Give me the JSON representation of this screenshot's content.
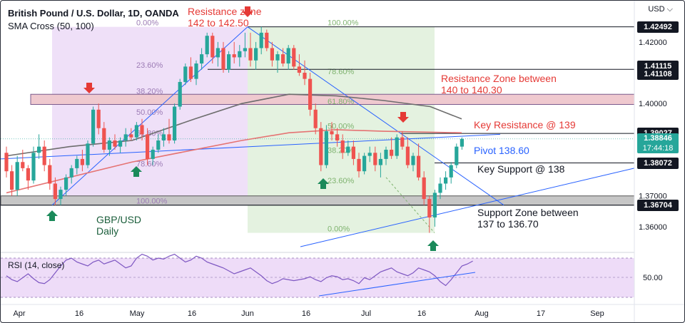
{
  "header": {
    "title": "British Pound / U.S. Dollar, 1D, OANDA",
    "indicator": "SMA Cross (50, 100)",
    "currency": "USD"
  },
  "rsi": {
    "label": "RSI (14, close)",
    "level_label": "50.00",
    "values": [
      52,
      48,
      46,
      50,
      54,
      49,
      45,
      44,
      48,
      55,
      62,
      68,
      70,
      66,
      64,
      62,
      66,
      68,
      64,
      66,
      68,
      64,
      60,
      62,
      70,
      74,
      72,
      68,
      70,
      69,
      72,
      74,
      70,
      66,
      68,
      72,
      70,
      66,
      64,
      62,
      60,
      57,
      54,
      56,
      58,
      60,
      56,
      52,
      47,
      44,
      46,
      49,
      48,
      47,
      48,
      49,
      51,
      48,
      46,
      50,
      52,
      51,
      48,
      49,
      47,
      44,
      50,
      48,
      52,
      56,
      58,
      60,
      56,
      54,
      52,
      55,
      60,
      58,
      56,
      52,
      46,
      42,
      48,
      55,
      62,
      64,
      67
    ]
  },
  "chart_data": {
    "type": "candlestick",
    "symbol": "GBP/USD",
    "timeframe": "1D",
    "y_axis": {
      "ticks": [
        "1.42000",
        "1.41000",
        "1.40000",
        "1.39000",
        "1.38000",
        "1.37000",
        "1.36000"
      ],
      "range": [
        1.3535,
        1.432
      ]
    },
    "x_axis": {
      "ticks": [
        "Apr",
        "16",
        "May",
        "16",
        "Jun",
        "16",
        "Jul",
        "16",
        "Aug",
        "17",
        "Sep"
      ]
    },
    "price_tags": [
      {
        "value": "1.42492",
        "color": "#131722"
      },
      {
        "value": "1.41115",
        "color": "#131722"
      },
      {
        "value": "1.41108",
        "color": "#131722"
      },
      {
        "value": "1.39027",
        "color": "#131722"
      },
      {
        "value": "1.38846",
        "sub": "17:44:18",
        "color": "#26a69a"
      },
      {
        "value": "1.38072",
        "color": "#131722"
      },
      {
        "value": "1.36704",
        "color": "#131722"
      }
    ],
    "fib_labels": {
      "left": [
        "0.00%",
        "23.60%",
        "38.20%",
        "50.00%",
        "61.80%",
        "78.60%",
        "100.00%"
      ],
      "right": [
        "100.00%",
        "78.60%",
        "61.80%",
        "50.00%",
        "38.20%",
        "23.60%",
        "0.00%"
      ]
    },
    "annotations": {
      "resistance_zone_top": [
        "Resistance zone",
        "142 to 142.50"
      ],
      "resistance_zone_140": [
        "Resistance Zone between",
        "140 to 140.30"
      ],
      "key_resistance": "Key Resistance @ 139",
      "pivot": "Pivot 138.60",
      "key_support": "Key Support @ 138",
      "support_zone": [
        "Support Zone between",
        "137 to 136.70"
      ],
      "pair_label": [
        "GBP/USD",
        "Daily"
      ]
    },
    "candles": [
      [
        1.384,
        1.386,
        1.376,
        1.378
      ],
      [
        1.378,
        1.38,
        1.37,
        1.372
      ],
      [
        1.372,
        1.383,
        1.37,
        1.381
      ],
      [
        1.381,
        1.385,
        1.378,
        1.379
      ],
      [
        1.379,
        1.38,
        1.372,
        1.375
      ],
      [
        1.375,
        1.386,
        1.374,
        1.384
      ],
      [
        1.384,
        1.39,
        1.382,
        1.386
      ],
      [
        1.386,
        1.388,
        1.378,
        1.38
      ],
      [
        1.38,
        1.382,
        1.372,
        1.374
      ],
      [
        1.374,
        1.376,
        1.367,
        1.369
      ],
      [
        1.369,
        1.373,
        1.367,
        1.372
      ],
      [
        1.372,
        1.377,
        1.37,
        1.376
      ],
      [
        1.376,
        1.38,
        1.374,
        1.379
      ],
      [
        1.379,
        1.383,
        1.377,
        1.382
      ],
      [
        1.382,
        1.385,
        1.378,
        1.38
      ],
      [
        1.38,
        1.388,
        1.379,
        1.387
      ],
      [
        1.387,
        1.399,
        1.386,
        1.398
      ],
      [
        1.398,
        1.4,
        1.39,
        1.392
      ],
      [
        1.392,
        1.394,
        1.384,
        1.385
      ],
      [
        1.385,
        1.389,
        1.383,
        1.388
      ],
      [
        1.388,
        1.39,
        1.385,
        1.386
      ],
      [
        1.386,
        1.389,
        1.384,
        1.388
      ],
      [
        1.388,
        1.392,
        1.386,
        1.39
      ],
      [
        1.39,
        1.392,
        1.388,
        1.389
      ],
      [
        1.389,
        1.394,
        1.388,
        1.393
      ],
      [
        1.393,
        1.395,
        1.388,
        1.39
      ],
      [
        1.39,
        1.392,
        1.38,
        1.382
      ],
      [
        1.382,
        1.386,
        1.38,
        1.385
      ],
      [
        1.385,
        1.39,
        1.384,
        1.388
      ],
      [
        1.388,
        1.392,
        1.386,
        1.39
      ],
      [
        1.39,
        1.395,
        1.387,
        1.388
      ],
      [
        1.388,
        1.4,
        1.387,
        1.399
      ],
      [
        1.399,
        1.408,
        1.398,
        1.407
      ],
      [
        1.407,
        1.413,
        1.406,
        1.412
      ],
      [
        1.412,
        1.415,
        1.407,
        1.408
      ],
      [
        1.408,
        1.414,
        1.406,
        1.413
      ],
      [
        1.413,
        1.418,
        1.411,
        1.416
      ],
      [
        1.416,
        1.423,
        1.415,
        1.422
      ],
      [
        1.422,
        1.423,
        1.413,
        1.415
      ],
      [
        1.415,
        1.42,
        1.412,
        1.418
      ],
      [
        1.418,
        1.42,
        1.41,
        1.411
      ],
      [
        1.411,
        1.417,
        1.41,
        1.416
      ],
      [
        1.416,
        1.42,
        1.413,
        1.415
      ],
      [
        1.415,
        1.419,
        1.412,
        1.417
      ],
      [
        1.417,
        1.423,
        1.415,
        1.418
      ],
      [
        1.418,
        1.423,
        1.412,
        1.414
      ],
      [
        1.414,
        1.42,
        1.411,
        1.418
      ],
      [
        1.418,
        1.4249,
        1.416,
        1.423
      ],
      [
        1.423,
        1.424,
        1.417,
        1.418
      ],
      [
        1.418,
        1.42,
        1.412,
        1.414
      ],
      [
        1.414,
        1.417,
        1.41,
        1.416
      ],
      [
        1.416,
        1.418,
        1.412,
        1.413
      ],
      [
        1.413,
        1.419,
        1.411,
        1.418
      ],
      [
        1.418,
        1.419,
        1.411,
        1.412
      ],
      [
        1.412,
        1.416,
        1.409,
        1.41
      ],
      [
        1.41,
        1.414,
        1.406,
        1.408
      ],
      [
        1.408,
        1.41,
        1.396,
        1.398
      ],
      [
        1.398,
        1.4,
        1.39,
        1.392
      ],
      [
        1.392,
        1.394,
        1.378,
        1.38
      ],
      [
        1.38,
        1.393,
        1.379,
        1.391
      ],
      [
        1.391,
        1.394,
        1.388,
        1.39
      ],
      [
        1.39,
        1.392,
        1.386,
        1.388
      ],
      [
        1.388,
        1.39,
        1.382,
        1.384
      ],
      [
        1.384,
        1.388,
        1.383,
        1.386
      ],
      [
        1.386,
        1.388,
        1.38,
        1.382
      ],
      [
        1.382,
        1.384,
        1.376,
        1.378
      ],
      [
        1.378,
        1.384,
        1.377,
        1.383
      ],
      [
        1.383,
        1.386,
        1.381,
        1.384
      ],
      [
        1.384,
        1.386,
        1.378,
        1.38
      ],
      [
        1.38,
        1.384,
        1.376,
        1.382
      ],
      [
        1.382,
        1.386,
        1.38,
        1.385
      ],
      [
        1.385,
        1.389,
        1.382,
        1.383
      ],
      [
        1.383,
        1.39,
        1.382,
        1.389
      ],
      [
        1.389,
        1.391,
        1.385,
        1.386
      ],
      [
        1.386,
        1.389,
        1.379,
        1.38
      ],
      [
        1.38,
        1.384,
        1.378,
        1.383
      ],
      [
        1.383,
        1.387,
        1.375,
        1.376
      ],
      [
        1.376,
        1.378,
        1.367,
        1.369
      ],
      [
        1.369,
        1.37,
        1.358,
        1.363
      ],
      [
        1.363,
        1.372,
        1.36,
        1.371
      ],
      [
        1.371,
        1.376,
        1.369,
        1.374
      ],
      [
        1.374,
        1.378,
        1.372,
        1.376
      ],
      [
        1.376,
        1.381,
        1.374,
        1.38
      ],
      [
        1.38,
        1.387,
        1.379,
        1.386
      ],
      [
        1.386,
        1.389,
        1.385,
        1.3885
      ]
    ],
    "sma50": [
      [
        0,
        1.383
      ],
      [
        20,
        1.386
      ],
      [
        40,
        1.388
      ],
      [
        60,
        1.395
      ],
      [
        75,
        1.4
      ],
      [
        90,
        1.403
      ],
      [
        105,
        1.4025
      ],
      [
        120,
        1.401
      ],
      [
        135,
        1.399
      ],
      [
        145,
        1.395
      ]
    ],
    "sma100": [
      [
        0,
        1.371
      ],
      [
        20,
        1.376
      ],
      [
        40,
        1.381
      ],
      [
        60,
        1.385
      ],
      [
        75,
        1.388
      ],
      [
        90,
        1.3905
      ],
      [
        105,
        1.3915
      ],
      [
        120,
        1.391
      ],
      [
        145,
        1.3905
      ]
    ]
  }
}
